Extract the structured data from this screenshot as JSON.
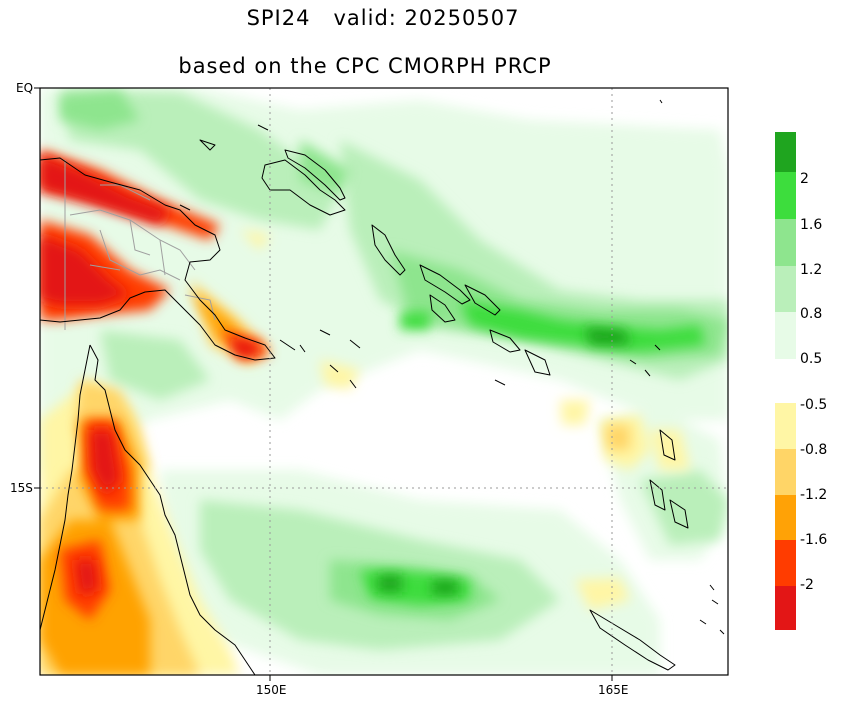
{
  "title_line1": "SPI24   valid: 20250507",
  "title_line2": "based on the CPC CMORPH PRCP",
  "lat_labels": [
    "EQ",
    "15S"
  ],
  "lon_labels": [
    "150E",
    "165E"
  ],
  "colorbar": {
    "wet_labels": [
      "2",
      "1.6",
      "1.2",
      "0.8",
      "0.5"
    ],
    "dry_labels": [
      "-0.5",
      "-0.8",
      "-1.2",
      "-1.6",
      "-2"
    ],
    "wet_colors": [
      "#1fa51f",
      "#3ddd3d",
      "#8ee58e",
      "#baefba",
      "#e7fbe7"
    ],
    "dry_colors": [
      "#fff6a5",
      "#ffd567",
      "#ffa206",
      "#ff3c00",
      "#e31616"
    ]
  },
  "colors": {
    "coast": "#000000",
    "border": "#a0a0a0",
    "grid": "#9a9a9a"
  }
}
